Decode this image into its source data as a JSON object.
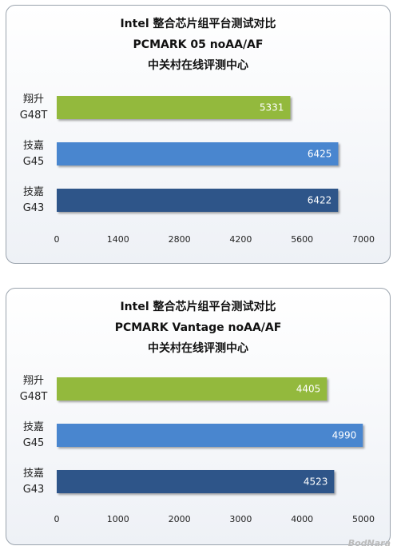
{
  "chart_data": [
    {
      "type": "bar",
      "orientation": "horizontal",
      "title_lines": [
        "Intel 整合芯片组平台测试对比",
        "PCMARK 05 noAA/AF",
        "中关村在线评测中心"
      ],
      "categories": [
        [
          "翔升",
          "G48T"
        ],
        [
          "技嘉",
          "G45"
        ],
        [
          "技嘉",
          "G43"
        ]
      ],
      "values": [
        5331,
        6425,
        6422
      ],
      "colors": [
        "#93b93c",
        "#4a86cf",
        "#2d5589"
      ],
      "xlim": [
        0,
        7000
      ],
      "xticks": [
        0,
        1400,
        2800,
        4200,
        5600,
        7000
      ],
      "grid": false
    },
    {
      "type": "bar",
      "orientation": "horizontal",
      "title_lines": [
        "Intel 整合芯片组平台测试对比",
        "PCMARK Vantage noAA/AF",
        "中关村在线评测中心"
      ],
      "categories": [
        [
          "翔升",
          "G48T"
        ],
        [
          "技嘉",
          "G45"
        ],
        [
          "技嘉",
          "G43"
        ]
      ],
      "values": [
        4405,
        4990,
        4523
      ],
      "colors": [
        "#93b93c",
        "#4a86cf",
        "#2d5589"
      ],
      "xlim": [
        0,
        5000
      ],
      "xticks": [
        0,
        1000,
        2000,
        3000,
        4000,
        5000
      ],
      "grid": false
    }
  ],
  "watermark": "BodNara"
}
